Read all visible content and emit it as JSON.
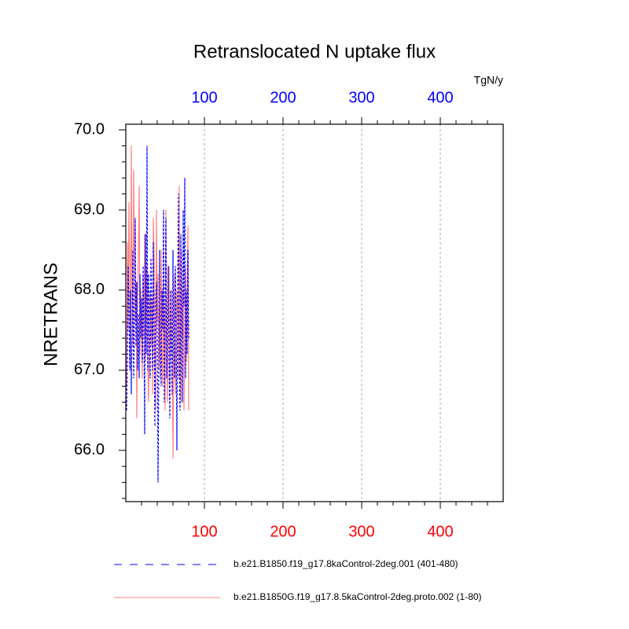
{
  "chart_data": {
    "type": "line",
    "title": "Retranslocated N uptake flux",
    "ylabel": "NRETRANS",
    "units": "TgN/y",
    "x": [
      1,
      2,
      3,
      4,
      5,
      6,
      7,
      8,
      9,
      10,
      11,
      12,
      13,
      14,
      15,
      16,
      17,
      18,
      19,
      20,
      21,
      22,
      23,
      24,
      25,
      26,
      27,
      28,
      29,
      30,
      31,
      32,
      33,
      34,
      35,
      36,
      37,
      38,
      39,
      40,
      41,
      42,
      43,
      44,
      45,
      46,
      47,
      48,
      49,
      50,
      51,
      52,
      53,
      54,
      55,
      56,
      57,
      58,
      59,
      60,
      61,
      62,
      63,
      64,
      65,
      66,
      67,
      68,
      69,
      70,
      71,
      72,
      73,
      74,
      75,
      76,
      77,
      78,
      79,
      80
    ],
    "series": [
      {
        "name": "b.e21.B1850G.f19_g17.8.5kaControl-2deg.proto.002 (1-80)",
        "color": "#ff8080",
        "dash": false,
        "values": [
          66.8,
          68.6,
          67.5,
          69.1,
          68.2,
          67.0,
          69.8,
          68.0,
          67.3,
          69.5,
          68.4,
          67.6,
          68.1,
          66.4,
          67.9,
          68.5,
          69.3,
          67.2,
          68.0,
          67.5,
          66.9,
          68.2,
          67.4,
          68.7,
          67.1,
          67.9,
          68.3,
          67.0,
          66.6,
          67.7,
          68.0,
          67.3,
          67.9,
          66.7,
          68.9,
          68.4,
          67.2,
          66.5,
          69.0,
          67.6,
          68.2,
          67.0,
          67.8,
          66.9,
          68.5,
          67.2,
          66.8,
          68.1,
          67.5,
          66.5,
          69.0,
          67.3,
          66.6,
          67.9,
          68.3,
          66.8,
          67.6,
          68.0,
          67.1,
          65.9,
          67.5,
          68.2,
          66.7,
          67.3,
          68.0,
          67.8,
          66.9,
          69.3,
          67.2,
          66.6,
          68.5,
          67.4,
          68.0,
          66.5,
          67.6,
          68.3,
          67.1,
          67.9,
          68.8,
          66.5
        ]
      },
      {
        "name": "b.e21.B1850.f19_g17.8kaControl-2deg.001 (401-480)",
        "color": "#0000ff",
        "dash": true,
        "values": [
          66.5,
          67.2,
          68.3,
          67.8,
          67.0,
          68.0,
          66.7,
          67.5,
          68.5,
          66.9,
          67.6,
          68.9,
          67.3,
          68.1,
          67.0,
          67.7,
          66.9,
          68.2,
          67.4,
          67.9,
          67.1,
          68.3,
          67.6,
          66.2,
          68.7,
          67.2,
          69.8,
          67.0,
          68.2,
          67.5,
          66.9,
          68.4,
          67.8,
          67.0,
          68.6,
          67.3,
          66.3,
          67.9,
          68.1,
          67.4,
          65.6,
          67.0,
          68.5,
          67.2,
          66.8,
          68.0,
          67.5,
          69.0,
          66.6,
          67.8,
          68.9,
          66.9,
          67.6,
          68.3,
          67.1,
          66.4,
          68.0,
          67.3,
          66.7,
          68.5,
          67.2,
          66.9,
          68.3,
          67.5,
          66.0,
          68.1,
          69.2,
          67.0,
          66.5,
          68.7,
          67.3,
          66.6,
          69.0,
          67.8,
          69.4,
          66.9,
          68.0,
          67.2,
          68.5,
          67.4
        ]
      }
    ],
    "legend_order": [
      1,
      0
    ],
    "xlim": [
      0,
      480
    ],
    "ylim": [
      65.36,
      70.07
    ],
    "xticks": [
      100,
      200,
      300,
      400
    ],
    "xminorticks": [
      20,
      40,
      60,
      80,
      120,
      140,
      160,
      180,
      220,
      240,
      260,
      280,
      320,
      340,
      360,
      380,
      420,
      440,
      460
    ],
    "yticks": [
      {
        "value": 66,
        "label": "66.0"
      },
      {
        "value": 67,
        "label": "67.0"
      },
      {
        "value": 68,
        "label": "68.0"
      },
      {
        "value": 69,
        "label": "69.0"
      },
      {
        "value": 70,
        "label": "70.0"
      }
    ],
    "yminorticks": [
      65.4,
      65.6,
      65.8,
      66.2,
      66.4,
      66.6,
      66.8,
      67.2,
      67.4,
      67.6,
      67.8,
      68.2,
      68.4,
      68.6,
      68.8,
      69.2,
      69.4,
      69.6,
      69.8
    ],
    "top_tick_color": "#0000ff",
    "bottom_tick_color": "#ff0000",
    "grid": true
  }
}
